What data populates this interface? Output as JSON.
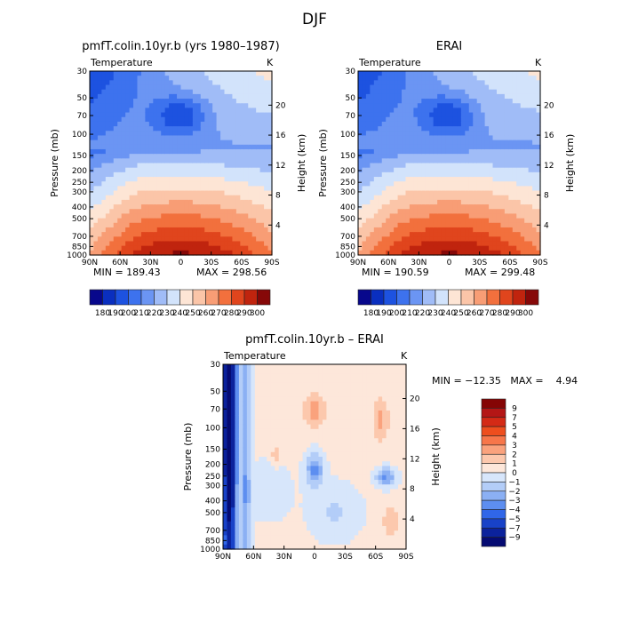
{
  "figure": {
    "season_title": "DJF"
  },
  "chart_data": [
    {
      "type": "heatmap",
      "title": "pmfT.colin.10yr.b (yrs 1980–1987)",
      "field_label": "Temperature",
      "units_label": "K",
      "ylabel": "Pressure (mb)",
      "ylabel_right": "Height (km)",
      "x_ticks": [
        "90N",
        "60N",
        "30N",
        "0",
        "30S",
        "60S",
        "90S"
      ],
      "y_ticks": [
        "30",
        "50",
        "70",
        "100",
        "150",
        "200",
        "250",
        "300",
        "400",
        "500",
        "700",
        "850",
        "1000"
      ],
      "height_ticks": [
        "20",
        "16",
        "12",
        "8",
        "4"
      ],
      "min_text": "MIN = 189.43",
      "max_text": "MAX = 298.56",
      "min": 189.43,
      "max": 298.56,
      "colorbar_labels": [
        "180",
        "190",
        "200",
        "210",
        "220",
        "230",
        "240",
        "250",
        "260",
        "270",
        "280",
        "290",
        "300"
      ]
    },
    {
      "type": "heatmap",
      "title": "ERAI",
      "field_label": "Temperature",
      "units_label": "K",
      "ylabel": "Pressure (mb)",
      "ylabel_right": "Height (km)",
      "x_ticks": [
        "90N",
        "60N",
        "30N",
        "0",
        "30S",
        "60S",
        "90S"
      ],
      "y_ticks": [
        "30",
        "50",
        "70",
        "100",
        "150",
        "200",
        "250",
        "300",
        "400",
        "500",
        "700",
        "850",
        "1000"
      ],
      "height_ticks": [
        "20",
        "16",
        "12",
        "8",
        "4"
      ],
      "min_text": "MIN = 190.59",
      "max_text": "MAX = 299.48",
      "min": 190.59,
      "max": 299.48,
      "colorbar_labels": [
        "180",
        "190",
        "200",
        "210",
        "220",
        "230",
        "240",
        "250",
        "260",
        "270",
        "280",
        "290",
        "300"
      ]
    },
    {
      "type": "heatmap",
      "title": "pmfT.colin.10yr.b – ERAI",
      "field_label": "Temperature",
      "units_label": "K",
      "ylabel": "Pressure (mb)",
      "ylabel_right": "Height (km)",
      "x_ticks": [
        "90N",
        "60N",
        "30N",
        "0",
        "30S",
        "60S",
        "90S"
      ],
      "y_ticks": [
        "30",
        "50",
        "70",
        "100",
        "150",
        "200",
        "250",
        "300",
        "400",
        "500",
        "700",
        "850",
        "1000"
      ],
      "height_ticks": [
        "20",
        "16",
        "12",
        "8",
        "4"
      ],
      "minmax_text": "MIN = −12.35   MAX =    4.94",
      "min": -12.35,
      "max": 4.94,
      "colorbar_labels": [
        "9",
        "7",
        "5",
        "4",
        "3",
        "2",
        "1",
        "0",
        "−1",
        "−2",
        "−3",
        "−4",
        "−5",
        "−7",
        "−9"
      ]
    }
  ],
  "colors": {
    "abs_scale": [
      "#08088c",
      "#0a2fbf",
      "#1d52e0",
      "#3d72ee",
      "#6b95f3",
      "#a0bcf7",
      "#d2e3fb",
      "#fde5d5",
      "#fbc5a8",
      "#f89d75",
      "#f2703d",
      "#e0451d",
      "#c0240e",
      "#860808"
    ],
    "diff_scale": [
      "#850505",
      "#b41616",
      "#d42a16",
      "#ee4e1e",
      "#f7764a",
      "#faa27d",
      "#fcc8ad",
      "#fde7da",
      "#d7e6fb",
      "#b3cdf8",
      "#8bb0f4",
      "#5d8ef0",
      "#3066e8",
      "#1842c8",
      "#0b229c",
      "#050b73"
    ]
  }
}
